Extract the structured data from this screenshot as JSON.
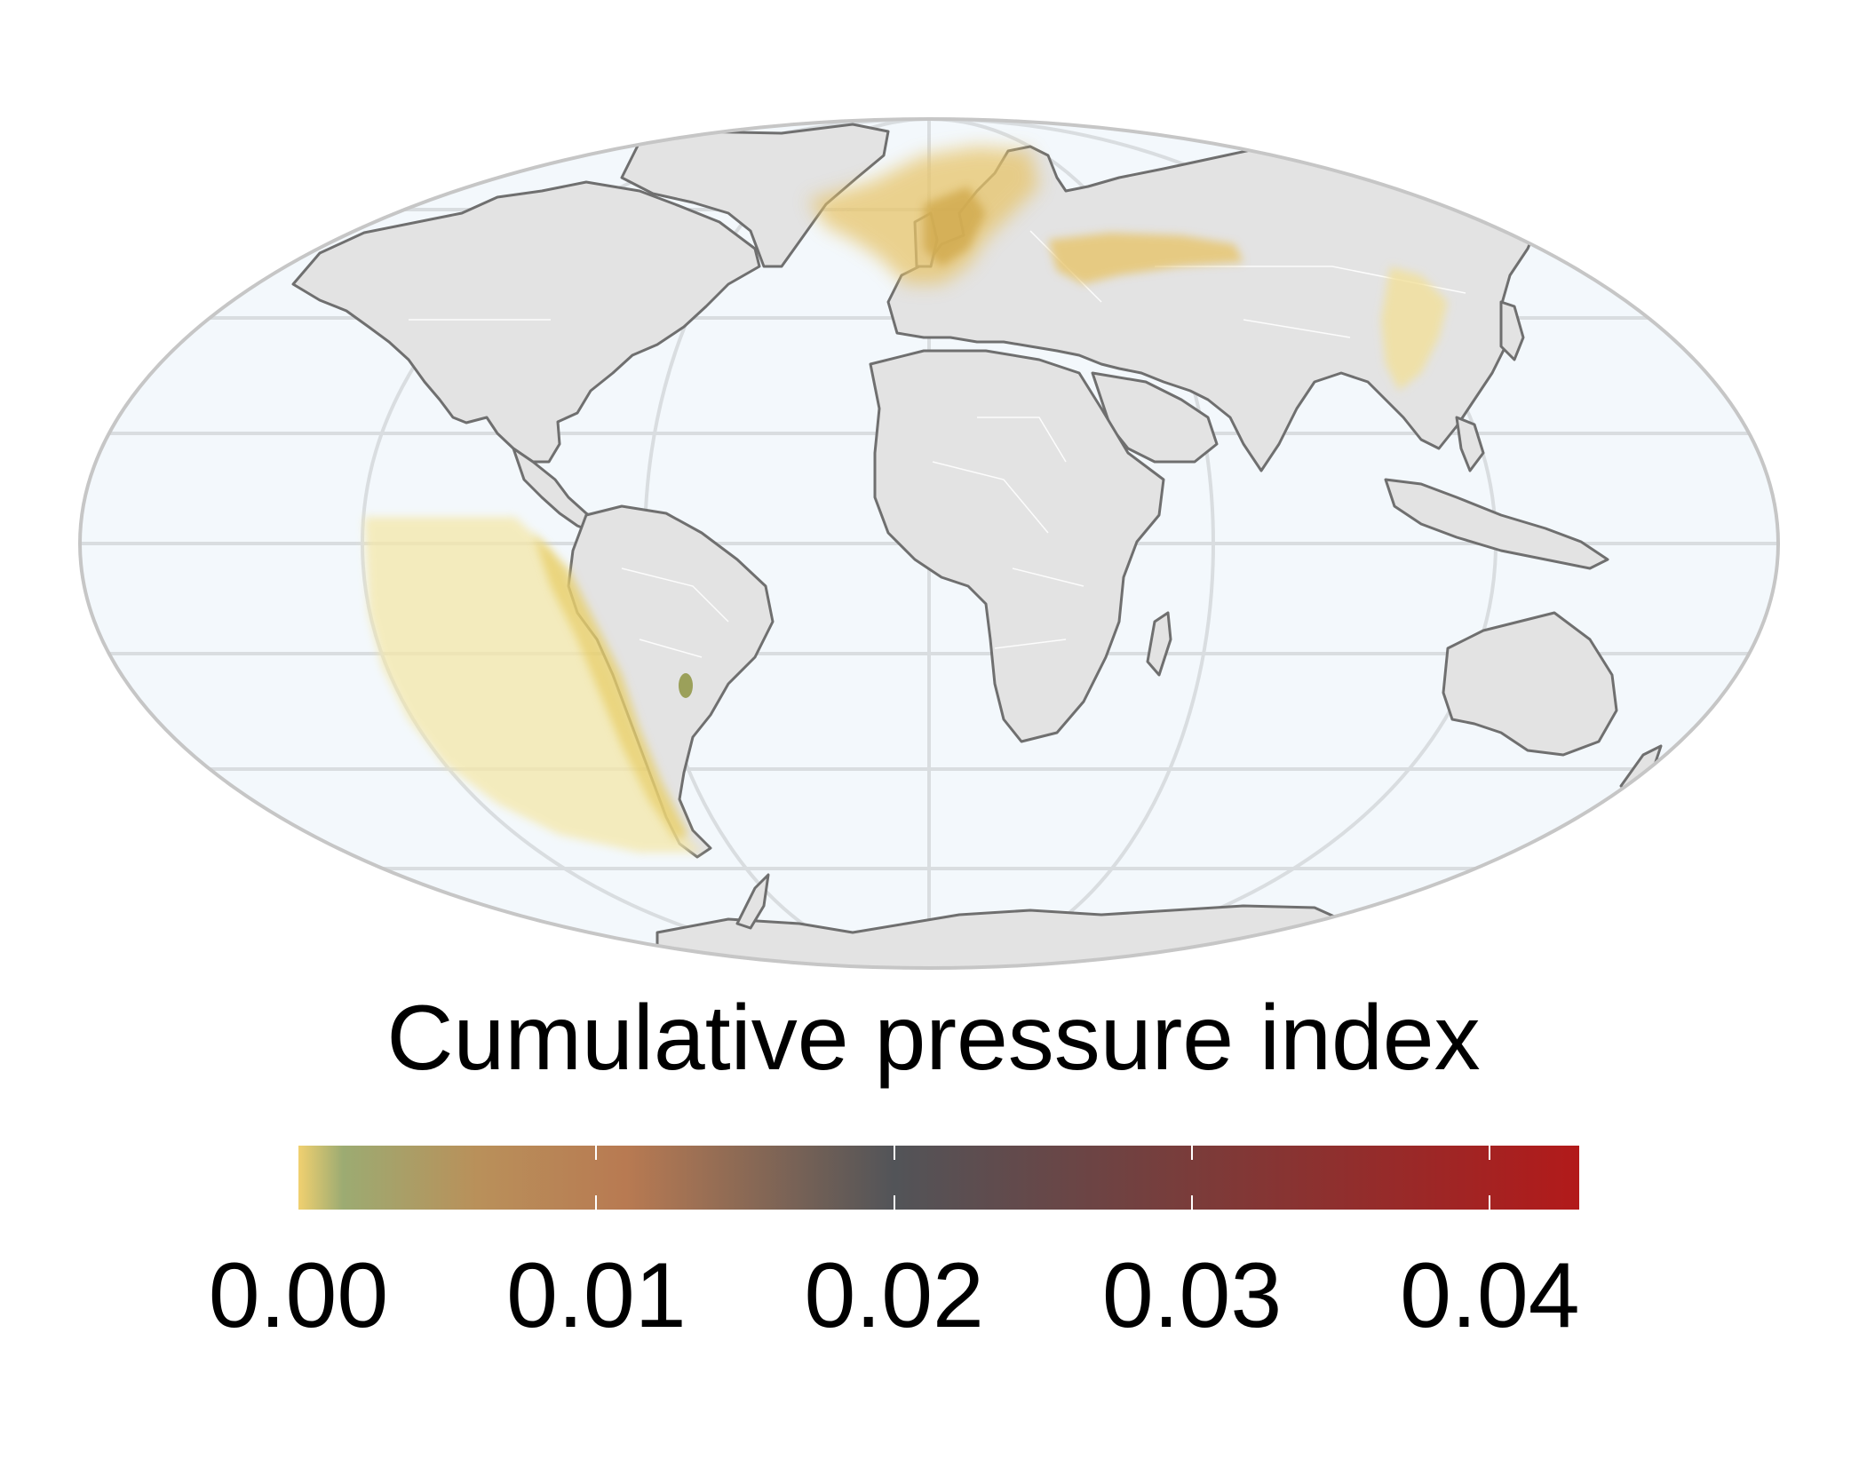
{
  "map": {
    "projection": "Mollweide",
    "colors": {
      "ocean": "#f3f8fc",
      "land": "#e3e3e3",
      "coast": "#6f6f6f",
      "graticule": "#d9dde0",
      "borders": "#ffffff",
      "outline": "#c6c6c6"
    },
    "hotspots": [
      {
        "region": "North Sea / Baltic",
        "level": "0.002-0.006"
      },
      {
        "region": "Western Russia",
        "level": "0.001-0.004"
      },
      {
        "region": "Eastern China",
        "level": "0.0005-0.002"
      },
      {
        "region": "Southeast Pacific off South America",
        "level": "0.0005-0.003"
      },
      {
        "region": "Paraguay",
        "level": "0.004"
      }
    ]
  },
  "legend": {
    "title": "Cumulative pressure index",
    "min": 0.0,
    "max": 0.043,
    "ticks": [
      "0.00",
      "0.01",
      "0.02",
      "0.03",
      "0.04"
    ],
    "tick_values": [
      0.0,
      0.01,
      0.02,
      0.03,
      0.04
    ],
    "gradient_stops": [
      {
        "value": 0.0,
        "color": "#f0d070"
      },
      {
        "value": 0.0015,
        "color": "#9cab72"
      },
      {
        "value": 0.006,
        "color": "#b9905a"
      },
      {
        "value": 0.011,
        "color": "#b87a52"
      },
      {
        "value": 0.02,
        "color": "#525458"
      },
      {
        "value": 0.03,
        "color": "#7a3c3a"
      },
      {
        "value": 0.043,
        "color": "#b21a1a"
      }
    ]
  }
}
